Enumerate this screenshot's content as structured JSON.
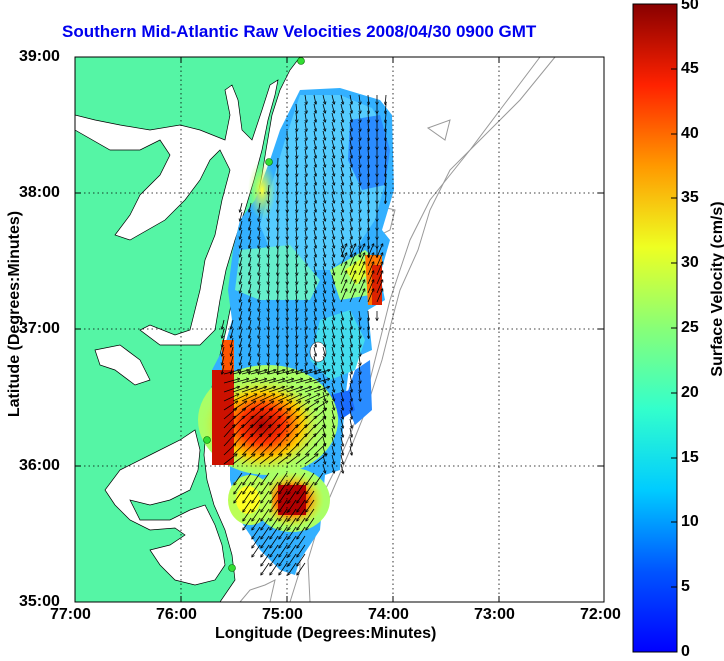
{
  "title": "Southern Mid-Atlantic Raw Velocities 2008/04/30 0900 GMT",
  "x_axis": {
    "label": "Longitude (Degrees:Minutes)",
    "ticks": [
      "77:00",
      "76:00",
      "75:00",
      "74:00",
      "73:00",
      "72:00"
    ]
  },
  "y_axis": {
    "label": "Latitude (Degrees:Minutes)",
    "ticks": [
      "39:00",
      "38:00",
      "37:00",
      "36:00",
      "35:00"
    ]
  },
  "colorbar": {
    "label": "Surface Velocity (cm/s)",
    "ticks": [
      "50",
      "45",
      "40",
      "35",
      "30",
      "25",
      "20",
      "15",
      "10",
      "5",
      "0"
    ],
    "min": 0,
    "max": 50,
    "colormap": "jet"
  },
  "map": {
    "lon_range": [
      -77,
      -72
    ],
    "lat_range": [
      35,
      39
    ],
    "grid": true,
    "land_color": "#55f5a5",
    "water_color": "#ffffff",
    "station_color": "#33dd33"
  }
}
